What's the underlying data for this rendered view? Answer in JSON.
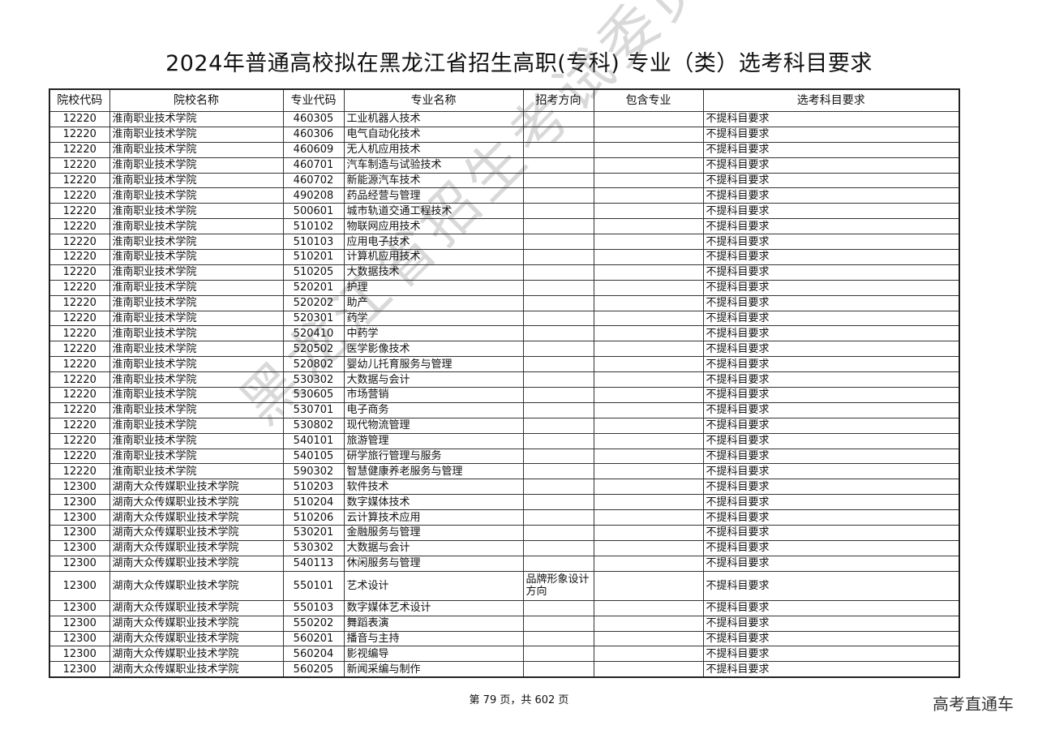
{
  "title": "2024年普通高校拟在黑龙江省招生高职(专科) 专业（类）选考科目要求",
  "headers": [
    "院校代码",
    "院校名称",
    "专业代码",
    "专业名称",
    "招考方向",
    "包含专业",
    "选考科目要求"
  ],
  "rows": [
    [
      "12220",
      "淮南职业技术学院",
      "460305",
      "工业机器人技术",
      "",
      "",
      "不提科目要求"
    ],
    [
      "12220",
      "淮南职业技术学院",
      "460306",
      "电气自动化技术",
      "",
      "",
      "不提科目要求"
    ],
    [
      "12220",
      "淮南职业技术学院",
      "460609",
      "无人机应用技术",
      "",
      "",
      "不提科目要求"
    ],
    [
      "12220",
      "淮南职业技术学院",
      "460701",
      "汽车制造与试验技术",
      "",
      "",
      "不提科目要求"
    ],
    [
      "12220",
      "淮南职业技术学院",
      "460702",
      "新能源汽车技术",
      "",
      "",
      "不提科目要求"
    ],
    [
      "12220",
      "淮南职业技术学院",
      "490208",
      "药品经营与管理",
      "",
      "",
      "不提科目要求"
    ],
    [
      "12220",
      "淮南职业技术学院",
      "500601",
      "城市轨道交通工程技术",
      "",
      "",
      "不提科目要求"
    ],
    [
      "12220",
      "淮南职业技术学院",
      "510102",
      "物联网应用技术",
      "",
      "",
      "不提科目要求"
    ],
    [
      "12220",
      "淮南职业技术学院",
      "510103",
      "应用电子技术",
      "",
      "",
      "不提科目要求"
    ],
    [
      "12220",
      "淮南职业技术学院",
      "510201",
      "计算机应用技术",
      "",
      "",
      "不提科目要求"
    ],
    [
      "12220",
      "淮南职业技术学院",
      "510205",
      "大数据技术",
      "",
      "",
      "不提科目要求"
    ],
    [
      "12220",
      "淮南职业技术学院",
      "520201",
      "护理",
      "",
      "",
      "不提科目要求"
    ],
    [
      "12220",
      "淮南职业技术学院",
      "520202",
      "助产",
      "",
      "",
      "不提科目要求"
    ],
    [
      "12220",
      "淮南职业技术学院",
      "520301",
      "药学",
      "",
      "",
      "不提科目要求"
    ],
    [
      "12220",
      "淮南职业技术学院",
      "520410",
      "中药学",
      "",
      "",
      "不提科目要求"
    ],
    [
      "12220",
      "淮南职业技术学院",
      "520502",
      "医学影像技术",
      "",
      "",
      "不提科目要求"
    ],
    [
      "12220",
      "淮南职业技术学院",
      "520802",
      "婴幼儿托育服务与管理",
      "",
      "",
      "不提科目要求"
    ],
    [
      "12220",
      "淮南职业技术学院",
      "530302",
      "大数据与会计",
      "",
      "",
      "不提科目要求"
    ],
    [
      "12220",
      "淮南职业技术学院",
      "530605",
      "市场营销",
      "",
      "",
      "不提科目要求"
    ],
    [
      "12220",
      "淮南职业技术学院",
      "530701",
      "电子商务",
      "",
      "",
      "不提科目要求"
    ],
    [
      "12220",
      "淮南职业技术学院",
      "530802",
      "现代物流管理",
      "",
      "",
      "不提科目要求"
    ],
    [
      "12220",
      "淮南职业技术学院",
      "540101",
      "旅游管理",
      "",
      "",
      "不提科目要求"
    ],
    [
      "12220",
      "淮南职业技术学院",
      "540105",
      "研学旅行管理与服务",
      "",
      "",
      "不提科目要求"
    ],
    [
      "12220",
      "淮南职业技术学院",
      "590302",
      "智慧健康养老服务与管理",
      "",
      "",
      "不提科目要求"
    ],
    [
      "12300",
      "湖南大众传媒职业技术学院",
      "510203",
      "软件技术",
      "",
      "",
      "不提科目要求"
    ],
    [
      "12300",
      "湖南大众传媒职业技术学院",
      "510204",
      "数字媒体技术",
      "",
      "",
      "不提科目要求"
    ],
    [
      "12300",
      "湖南大众传媒职业技术学院",
      "510206",
      "云计算技术应用",
      "",
      "",
      "不提科目要求"
    ],
    [
      "12300",
      "湖南大众传媒职业技术学院",
      "530201",
      "金融服务与管理",
      "",
      "",
      "不提科目要求"
    ],
    [
      "12300",
      "湖南大众传媒职业技术学院",
      "530302",
      "大数据与会计",
      "",
      "",
      "不提科目要求"
    ],
    [
      "12300",
      "湖南大众传媒职业技术学院",
      "540113",
      "休闲服务与管理",
      "",
      "",
      "不提科目要求"
    ],
    [
      "12300",
      "湖南大众传媒职业技术学院",
      "550101",
      "艺术设计",
      "品牌形象设计方向",
      "",
      "不提科目要求"
    ],
    [
      "12300",
      "湖南大众传媒职业技术学院",
      "550103",
      "数字媒体艺术设计",
      "",
      "",
      "不提科目要求"
    ],
    [
      "12300",
      "湖南大众传媒职业技术学院",
      "550202",
      "舞蹈表演",
      "",
      "",
      "不提科目要求"
    ],
    [
      "12300",
      "湖南大众传媒职业技术学院",
      "560201",
      "播音与主持",
      "",
      "",
      "不提科目要求"
    ],
    [
      "12300",
      "湖南大众传媒职业技术学院",
      "560204",
      "影视编导",
      "",
      "",
      "不提科目要求"
    ],
    [
      "12300",
      "湖南大众传媒职业技术学院",
      "560205",
      "新闻采编与制作",
      "",
      "",
      "不提科目要求"
    ]
  ],
  "footer": "第 79 页，共 602 页",
  "brand": "高考直通车",
  "watermark": "黑龙江省招生考试委员会办公室"
}
